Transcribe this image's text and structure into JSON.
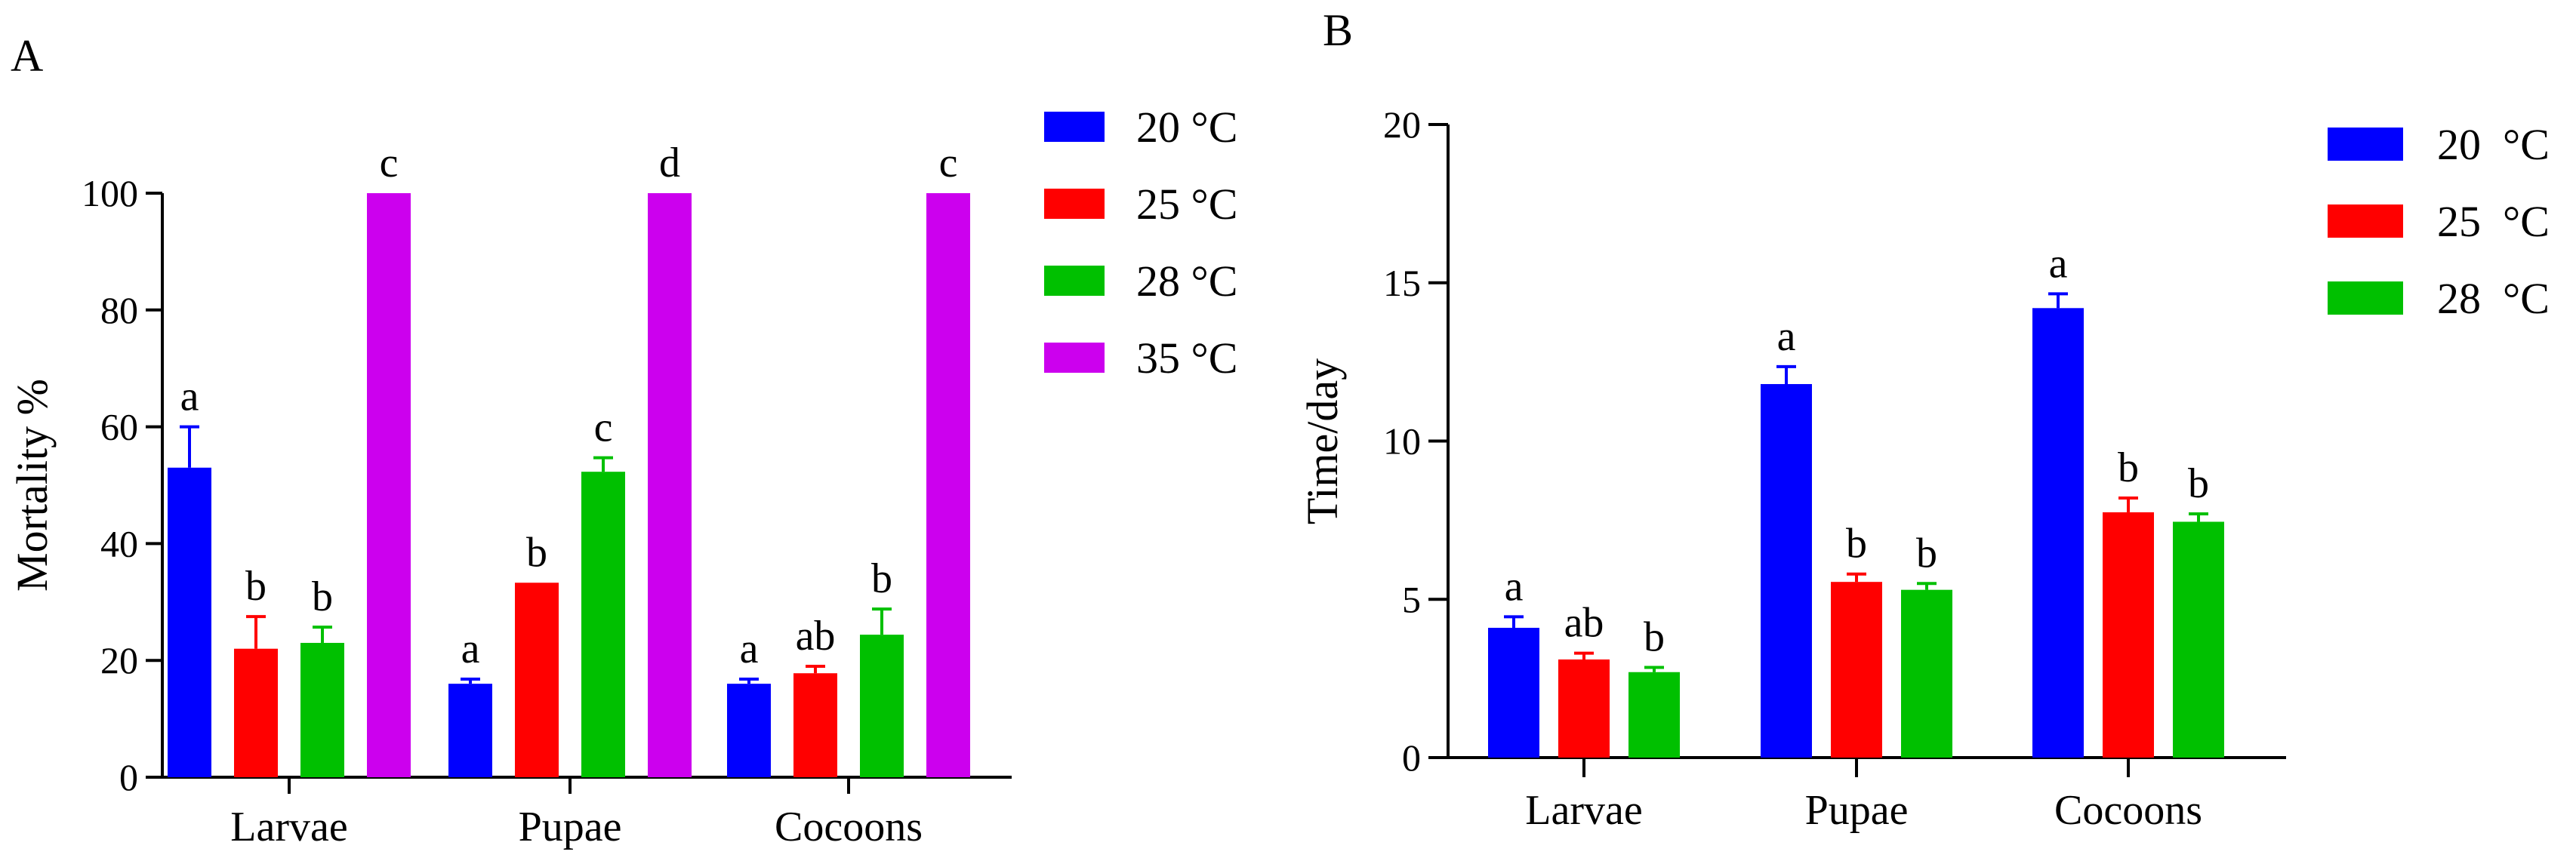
{
  "chart_data": [
    {
      "type": "bar",
      "panel": "A",
      "title": "",
      "xlabel": "",
      "ylabel": "Mortality %",
      "ylim": [
        0,
        100
      ],
      "yticks": [
        0,
        20,
        40,
        60,
        80,
        100
      ],
      "categories": [
        "Larvae",
        "Pupae",
        "Cocoons"
      ],
      "legend_position": "top-right",
      "series": [
        {
          "name": "20 °C",
          "color": "#0000ff",
          "values": [
            53,
            16,
            16
          ],
          "errors": [
            7,
            0.8,
            0.8
          ],
          "letters": [
            "a",
            "a",
            "a"
          ]
        },
        {
          "name": "25 °C",
          "color": "#ff0000",
          "values": [
            22,
            33.3,
            17.8
          ],
          "errors": [
            5.5,
            0,
            1.2
          ],
          "letters": [
            "b",
            "b",
            "ab"
          ]
        },
        {
          "name": "28 °C",
          "color": "#00c000",
          "values": [
            23,
            52.3,
            24.4
          ],
          "errors": [
            2.7,
            2.4,
            4.4
          ],
          "letters": [
            "b",
            "c",
            "b"
          ]
        },
        {
          "name": "35 °C",
          "color": "#cc00ee",
          "values": [
            100,
            100,
            100
          ],
          "errors": [
            0,
            0,
            0
          ],
          "letters": [
            "c",
            "d",
            "c"
          ]
        }
      ]
    },
    {
      "type": "bar",
      "panel": "B",
      "title": "",
      "xlabel": "",
      "ylabel": "Time/day",
      "ylim": [
        0,
        20
      ],
      "yticks": [
        0,
        5,
        10,
        15,
        20
      ],
      "categories": [
        "Larvae",
        "Pupae",
        "Cocoons"
      ],
      "legend_position": "top-right",
      "series": [
        {
          "name": "20  °C",
          "color": "#0000ff",
          "values": [
            4.1,
            11.8,
            14.2
          ],
          "errors": [
            0.35,
            0.55,
            0.45
          ],
          "letters": [
            "a",
            "a",
            "a"
          ]
        },
        {
          "name": "25  °C",
          "color": "#ff0000",
          "values": [
            3.1,
            5.55,
            7.75
          ],
          "errors": [
            0.2,
            0.25,
            0.45
          ],
          "letters": [
            "ab",
            "b",
            "b"
          ]
        },
        {
          "name": "28  °C",
          "color": "#00c000",
          "values": [
            2.7,
            5.3,
            7.45
          ],
          "errors": [
            0.15,
            0.2,
            0.25
          ],
          "letters": [
            "b",
            "b",
            "b"
          ]
        }
      ]
    }
  ]
}
